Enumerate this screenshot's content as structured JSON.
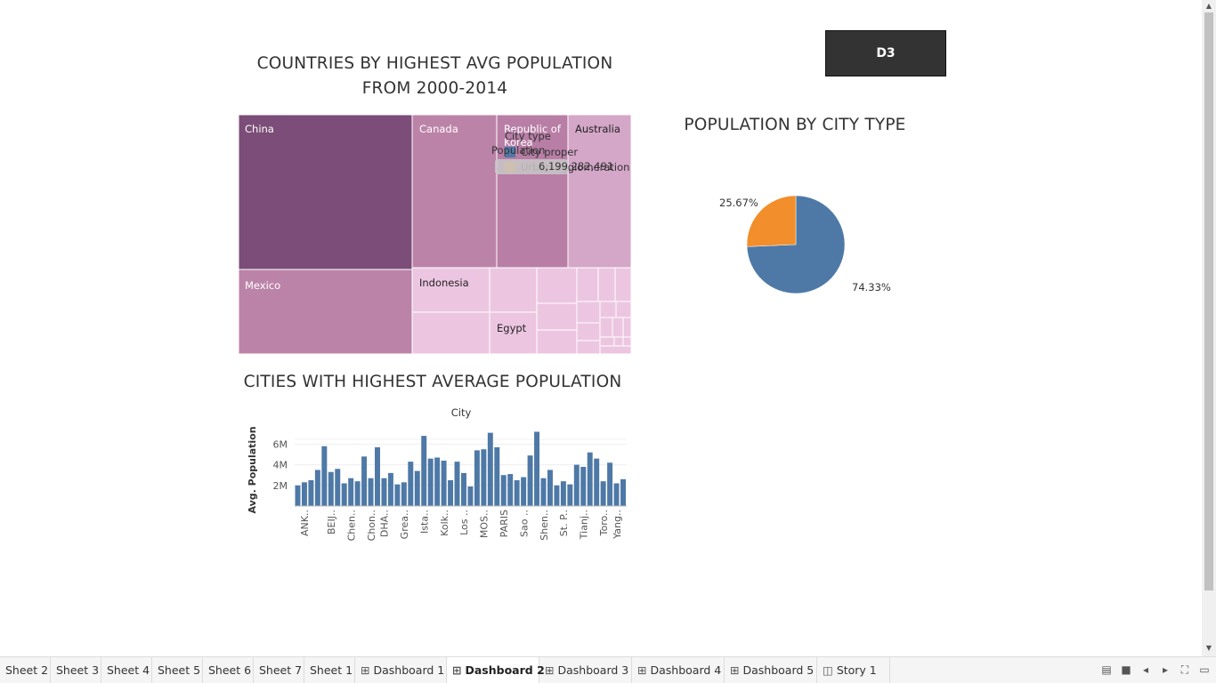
{
  "dashboard": {
    "button_label": "D3",
    "treemap_title_line1": "COUNTRIES BY HIGHEST AVG POPULATION",
    "treemap_title_line2": "FROM 2000-2014",
    "pie_title": "POPULATION BY CITY TYPE",
    "bar_title": "CITIES WITH HIGHEST AVERAGE POPULATION"
  },
  "treemap": {
    "labels": [
      "China",
      "Canada",
      "Republic of Korea",
      "Australia",
      "Mexico",
      "Indonesia",
      "Egypt"
    ],
    "colors": {
      "dark": "#7b4d78",
      "mid": "#bc83a8",
      "midalt": "#b87ea6",
      "light": "#d4a6c7",
      "pale": "#ecc6e1"
    }
  },
  "legend": {
    "header": "City type",
    "items": [
      {
        "label": "City proper",
        "color": "#4e79a7"
      },
      {
        "label": "Urban agglomeration",
        "color": "#f28e2b"
      }
    ]
  },
  "tooltip": {
    "label": "Population",
    "value": "6,199,282,491"
  },
  "chart_data": [
    {
      "type": "pie",
      "title": "POPULATION BY CITY TYPE",
      "slices": [
        {
          "name": "City proper",
          "value": 74.33,
          "label": "74.33%",
          "color": "#4e79a7"
        },
        {
          "name": "Urban agglomeration",
          "value": 25.67,
          "label": "25.67%",
          "color": "#f28e2b"
        }
      ]
    },
    {
      "type": "bar",
      "title": "CITIES WITH HIGHEST AVERAGE POPULATION",
      "xlabel": "City",
      "ylabel": "Avg. Population",
      "ylim": [
        0,
        7500000
      ],
      "yticks": [
        {
          "value": 2000000,
          "label": "2M"
        },
        {
          "value": 4000000,
          "label": "4M"
        },
        {
          "value": 6000000,
          "label": "6M"
        }
      ],
      "color": "#4e79a7",
      "values": [
        2000000,
        2300000,
        2500000,
        3500000,
        5800000,
        3300000,
        3600000,
        2200000,
        2700000,
        2400000,
        4800000,
        2700000,
        5700000,
        2700000,
        3200000,
        2100000,
        2300000,
        4300000,
        3400000,
        6800000,
        4600000,
        4700000,
        4400000,
        2500000,
        4300000,
        3200000,
        1900000,
        5400000,
        5500000,
        7100000,
        5700000,
        3000000,
        3100000,
        2500000,
        2800000,
        4900000,
        7200000,
        2700000,
        3500000,
        2000000,
        2400000,
        2100000,
        4000000,
        3800000,
        5200000,
        4600000,
        2400000,
        4200000,
        2200000,
        2600000
      ],
      "tick_labels": [
        {
          "index": 1,
          "label": "ANK.."
        },
        {
          "index": 5,
          "label": "BEIJ.."
        },
        {
          "index": 8,
          "label": "Chen.."
        },
        {
          "index": 11,
          "label": "Chon.."
        },
        {
          "index": 13,
          "label": "DHA.."
        },
        {
          "index": 16,
          "label": "Grea.."
        },
        {
          "index": 19,
          "label": "Ista.."
        },
        {
          "index": 22,
          "label": "Kolk.."
        },
        {
          "index": 25,
          "label": "Los .."
        },
        {
          "index": 28,
          "label": "MOS.."
        },
        {
          "index": 31,
          "label": "PARIS"
        },
        {
          "index": 34,
          "label": "Sao .."
        },
        {
          "index": 37,
          "label": "Shen.."
        },
        {
          "index": 40,
          "label": "St. P.."
        },
        {
          "index": 43,
          "label": "Tianj.."
        },
        {
          "index": 46,
          "label": "Toro.."
        },
        {
          "index": 48,
          "label": "Yang.."
        }
      ]
    }
  ],
  "tabs": [
    {
      "label": "Sheet 2",
      "icon": ""
    },
    {
      "label": "Sheet 3",
      "icon": ""
    },
    {
      "label": "Sheet 4",
      "icon": ""
    },
    {
      "label": "Sheet 5",
      "icon": ""
    },
    {
      "label": "Sheet 6",
      "icon": ""
    },
    {
      "label": "Sheet 7",
      "icon": ""
    },
    {
      "label": "Sheet 1",
      "icon": ""
    },
    {
      "label": "Dashboard 1",
      "icon": "⊞"
    },
    {
      "label": "Dashboard 2",
      "icon": "⊞",
      "active": true
    },
    {
      "label": "Dashboard 3",
      "icon": "⊞"
    },
    {
      "label": "Dashboard 4",
      "icon": "⊞"
    },
    {
      "label": "Dashboard 5",
      "icon": "⊞"
    },
    {
      "label": "Story 1",
      "icon": "◫"
    }
  ],
  "controls": {
    "show_filmstrip_icon": "▤",
    "show_tabs_icon": "■",
    "prev_icon": "◂",
    "next_icon": "▸",
    "fullscreen_icon": "⛶",
    "presentation_icon": "▭"
  }
}
